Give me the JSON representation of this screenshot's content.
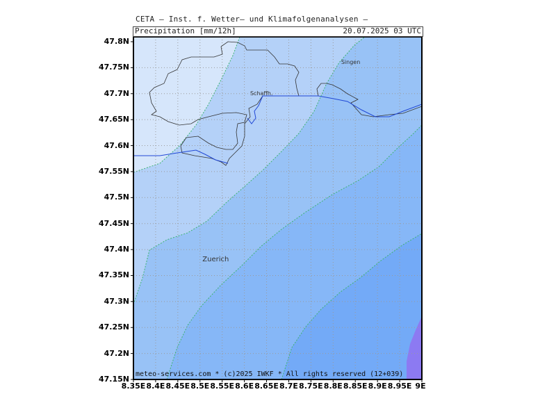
{
  "header": {
    "title": "CETA — Inst. f. Wetter— und Klimafolgenanalysen —",
    "parameter": "Precipitation [mm/12h]",
    "valid_time": "20.07.2025  03 UTC"
  },
  "copyright": "meteo-services.com * (c)2025 IWKF * All rights reserved (12+039)",
  "axes": {
    "y_labels": [
      "47.8N",
      "47.75N",
      "47.7N",
      "47.65N",
      "47.6N",
      "47.55N",
      "47.5N",
      "47.45N",
      "47.4N",
      "47.35N",
      "47.3N",
      "47.25N",
      "47.2N",
      "47.15N"
    ],
    "x_labels": [
      "8.35E",
      "8.4E",
      "8.45E",
      "8.5E",
      "8.55E",
      "8.6E",
      "8.65E",
      "8.7E",
      "8.75E",
      "8.8E",
      "8.85E",
      "8.9E",
      "8.95E",
      "9E"
    ],
    "lat_range": [
      47.15,
      47.81
    ],
    "lon_range": [
      8.35,
      9.0
    ],
    "grid": true
  },
  "cities": [
    {
      "name": "Singen",
      "lon": 8.84,
      "lat": 47.76
    },
    {
      "name": "Schaffh.",
      "lon": 8.635,
      "lat": 47.7
    },
    {
      "name": "Zuerich",
      "lon": 8.54,
      "lat": 47.38
    }
  ],
  "colors": {
    "band1": "#d6e6fb",
    "band2": "#b4d1f8",
    "band3": "#98c2f6",
    "band4": "#86b7f7",
    "band5": "#73aaf7",
    "band6": "#62a2f7",
    "band7": "#8c7af2",
    "contour": "#3cb371",
    "border": "#000000"
  }
}
